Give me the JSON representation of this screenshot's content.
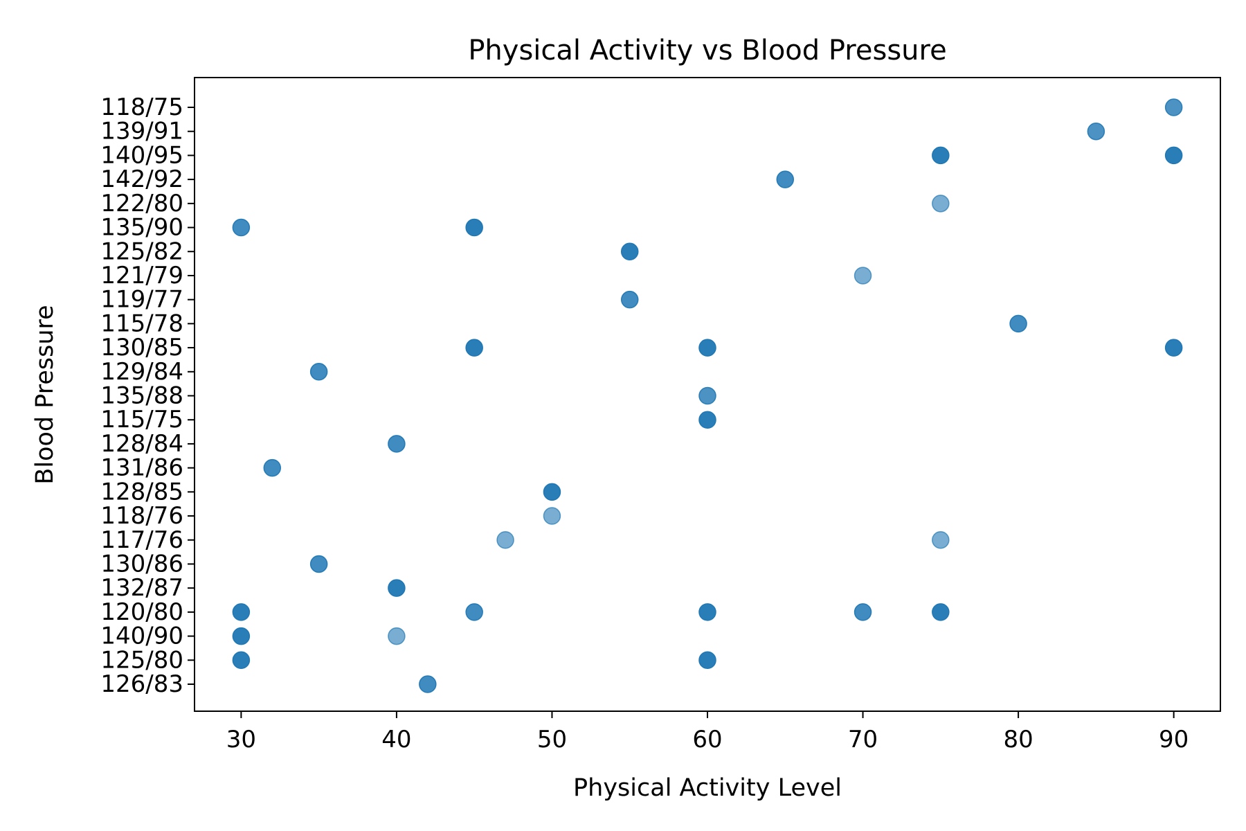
{
  "chart_data": {
    "type": "scatter",
    "title": "Physical Activity vs Blood Pressure",
    "xlabel": "Physical Activity Level",
    "ylabel": "Blood Pressure",
    "xlim": [
      27,
      93
    ],
    "xticks": [
      30,
      40,
      50,
      60,
      70,
      80,
      90
    ],
    "y_categories": [
      "118/75",
      "139/91",
      "140/95",
      "142/92",
      "122/80",
      "135/90",
      "125/82",
      "121/79",
      "119/77",
      "115/78",
      "130/85",
      "129/84",
      "135/88",
      "115/75",
      "128/84",
      "131/86",
      "128/85",
      "118/76",
      "117/76",
      "130/86",
      "132/87",
      "120/80",
      "140/90",
      "125/80",
      "126/83"
    ],
    "grid": false,
    "legend": "none",
    "marker_color": "#1f77b4",
    "points": [
      {
        "x": 90,
        "y": "118/75",
        "opacity": 0.8
      },
      {
        "x": 85,
        "y": "139/91",
        "opacity": 0.8
      },
      {
        "x": 75,
        "y": "140/95",
        "opacity": 0.95
      },
      {
        "x": 90,
        "y": "140/95",
        "opacity": 0.95
      },
      {
        "x": 65,
        "y": "142/92",
        "opacity": 0.85
      },
      {
        "x": 75,
        "y": "122/80",
        "opacity": 0.6
      },
      {
        "x": 30,
        "y": "135/90",
        "opacity": 0.85
      },
      {
        "x": 45,
        "y": "135/90",
        "opacity": 0.95
      },
      {
        "x": 55,
        "y": "125/82",
        "opacity": 0.95
      },
      {
        "x": 70,
        "y": "121/79",
        "opacity": 0.6
      },
      {
        "x": 55,
        "y": "119/77",
        "opacity": 0.85
      },
      {
        "x": 80,
        "y": "115/78",
        "opacity": 0.85
      },
      {
        "x": 45,
        "y": "130/85",
        "opacity": 0.95
      },
      {
        "x": 60,
        "y": "130/85",
        "opacity": 0.95
      },
      {
        "x": 90,
        "y": "130/85",
        "opacity": 0.95
      },
      {
        "x": 35,
        "y": "129/84",
        "opacity": 0.85
      },
      {
        "x": 60,
        "y": "135/88",
        "opacity": 0.8
      },
      {
        "x": 60,
        "y": "115/75",
        "opacity": 0.95
      },
      {
        "x": 40,
        "y": "128/84",
        "opacity": 0.85
      },
      {
        "x": 32,
        "y": "131/86",
        "opacity": 0.85
      },
      {
        "x": 50,
        "y": "128/85",
        "opacity": 0.95
      },
      {
        "x": 50,
        "y": "118/76",
        "opacity": 0.6
      },
      {
        "x": 47,
        "y": "117/76",
        "opacity": 0.6
      },
      {
        "x": 75,
        "y": "117/76",
        "opacity": 0.6
      },
      {
        "x": 35,
        "y": "130/86",
        "opacity": 0.85
      },
      {
        "x": 40,
        "y": "132/87",
        "opacity": 0.95
      },
      {
        "x": 30,
        "y": "120/80",
        "opacity": 0.95
      },
      {
        "x": 45,
        "y": "120/80",
        "opacity": 0.85
      },
      {
        "x": 60,
        "y": "120/80",
        "opacity": 0.95
      },
      {
        "x": 70,
        "y": "120/80",
        "opacity": 0.85
      },
      {
        "x": 75,
        "y": "120/80",
        "opacity": 0.95
      },
      {
        "x": 30,
        "y": "140/90",
        "opacity": 0.95
      },
      {
        "x": 40,
        "y": "140/90",
        "opacity": 0.6
      },
      {
        "x": 30,
        "y": "125/80",
        "opacity": 0.95
      },
      {
        "x": 60,
        "y": "125/80",
        "opacity": 0.95
      },
      {
        "x": 42,
        "y": "126/83",
        "opacity": 0.85
      }
    ]
  }
}
